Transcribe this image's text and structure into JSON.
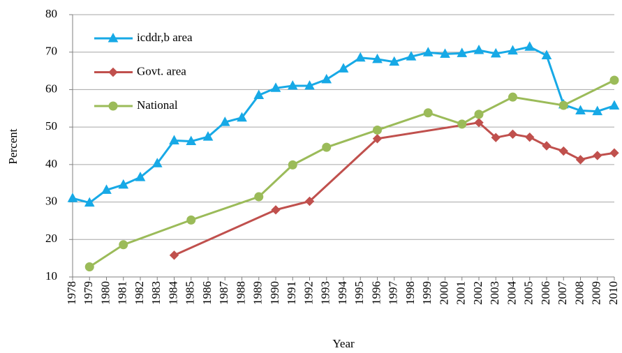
{
  "chart_data": {
    "type": "line",
    "x_label": "Year",
    "y_label": "Percent",
    "xlim": [
      1978,
      2010
    ],
    "xticks": [
      1978,
      1979,
      1980,
      1981,
      1982,
      1983,
      1984,
      1985,
      1986,
      1987,
      1988,
      1989,
      1990,
      1991,
      1992,
      1993,
      1994,
      1995,
      1996,
      1997,
      1998,
      1999,
      2000,
      2001,
      2002,
      2003,
      2004,
      2005,
      2006,
      2007,
      2008,
      2009,
      2010
    ],
    "ylim": [
      10,
      80
    ],
    "yticks": [
      10,
      20,
      30,
      40,
      50,
      60,
      70,
      80
    ],
    "grid": true,
    "legend": "top-left",
    "series": [
      {
        "name": "icddr,b area",
        "color": "#17a9e6",
        "marker": "triangle",
        "x": [
          1978,
          1979,
          1980,
          1981,
          1982,
          1983,
          1984,
          1985,
          1986,
          1987,
          1988,
          1989,
          1990,
          1991,
          1992,
          1993,
          1994,
          1995,
          1996,
          1997,
          1998,
          1999,
          2000,
          2001,
          2002,
          2003,
          2004,
          2005,
          2006,
          2007,
          2008,
          2009,
          2010
        ],
        "values": [
          31,
          29.8,
          33.2,
          34.6,
          36.6,
          40.3,
          46.4,
          46.2,
          47.4,
          51.3,
          52.5,
          58.5,
          60.4,
          61,
          61,
          62.7,
          65.6,
          68.5,
          68.1,
          67.4,
          68.8,
          69.9,
          69.5,
          69.7,
          70.5,
          69.6,
          70.4,
          71.4,
          69.1,
          56,
          54.4,
          54.2,
          55.7
        ]
      },
      {
        "name": "Govt. area",
        "color": "#c0504d",
        "marker": "diamond",
        "x": [
          1984,
          1990,
          1992,
          1996,
          2002,
          2003,
          2004,
          2005,
          2006,
          2007,
          2008,
          2009,
          2010
        ],
        "values": [
          15.8,
          27.9,
          30.2,
          46.9,
          51.2,
          47.2,
          48.1,
          47.3,
          45,
          43.6,
          41.3,
          42.4,
          43.1
        ]
      },
      {
        "name": "National",
        "color": "#9bbb59",
        "marker": "circle",
        "x": [
          1979,
          1981,
          1985,
          1989,
          1991,
          1993,
          1996,
          1999,
          2001,
          2002,
          2004,
          2007,
          2010
        ],
        "values": [
          12.7,
          18.6,
          25.2,
          31.4,
          39.9,
          44.6,
          49.2,
          53.8,
          50.8,
          53.4,
          58,
          55.8,
          62.5
        ]
      }
    ]
  }
}
